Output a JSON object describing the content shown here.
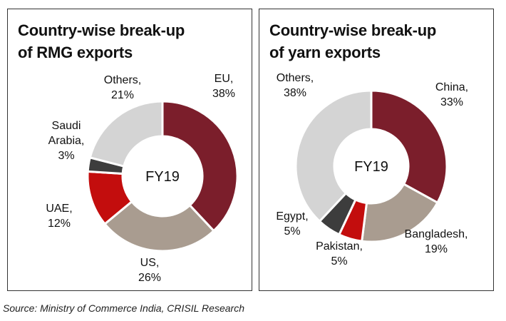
{
  "source": "Source: Ministry of Commerce India, CRISIL Research",
  "colors": {
    "maroon": "#7b1e2b",
    "taupe": "#a99c90",
    "red": "#c30d0d",
    "dark_gray": "#3d3d3d",
    "light_gray": "#d4d4d4"
  },
  "chart_data": [
    {
      "type": "pie",
      "title_lines": [
        "Country-wise break-up",
        "of RMG exports"
      ],
      "center_label": "FY19",
      "slices": [
        {
          "name": "EU",
          "value": 38,
          "label_lines": [
            "EU,",
            "38%"
          ],
          "color": "#7b1e2b"
        },
        {
          "name": "US",
          "value": 26,
          "label_lines": [
            "US,",
            "26%"
          ],
          "color": "#a99c90"
        },
        {
          "name": "UAE",
          "value": 12,
          "label_lines": [
            "UAE,",
            "12%"
          ],
          "color": "#c30d0d"
        },
        {
          "name": "Saudi Arabia",
          "value": 3,
          "label_lines": [
            "Saudi",
            "Arabia,",
            "3%"
          ],
          "color": "#3d3d3d"
        },
        {
          "name": "Others",
          "value": 21,
          "label_lines": [
            "Others,",
            "21%"
          ],
          "color": "#d4d4d4"
        }
      ]
    },
    {
      "type": "pie",
      "title_lines": [
        "Country-wise break-up",
        "of yarn exports"
      ],
      "center_label": "FY19",
      "slices": [
        {
          "name": "China",
          "value": 33,
          "label_lines": [
            "China,",
            "33%"
          ],
          "color": "#7b1e2b"
        },
        {
          "name": "Bangladesh",
          "value": 19,
          "label_lines": [
            "Bangladesh,",
            "19%"
          ],
          "color": "#a99c90"
        },
        {
          "name": "Pakistan",
          "value": 5,
          "label_lines": [
            "Pakistan,",
            "5%"
          ],
          "color": "#c30d0d"
        },
        {
          "name": "Egypt",
          "value": 5,
          "label_lines": [
            "Egypt,",
            "5%"
          ],
          "color": "#3d3d3d"
        },
        {
          "name": "Others",
          "value": 38,
          "label_lines": [
            "Others,",
            "38%"
          ],
          "color": "#d4d4d4"
        }
      ]
    }
  ]
}
